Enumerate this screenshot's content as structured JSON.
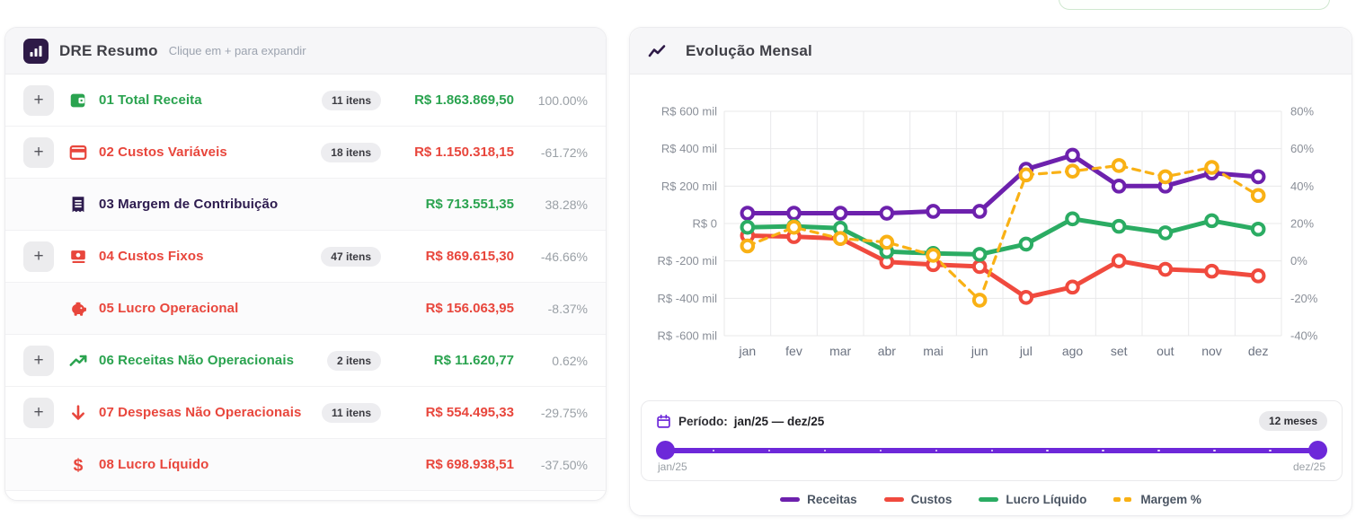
{
  "colors": {
    "green": "#2aa34f",
    "red": "#e8463c",
    "dark_purple": "#2d1b4e",
    "chart_purple": "#6d21ad",
    "chart_red": "#f04a3e",
    "chart_green": "#2bac63",
    "chart_orange": "#f9b115",
    "slider_purple": "#6d28d9",
    "muted": "#9aa0a6"
  },
  "dre": {
    "title": "DRE Resumo",
    "subtitle": "Clique em + para expandir",
    "rows": [
      {
        "expandable": true,
        "icon": "wallet-icon",
        "label": "01 Total Receita",
        "items": "11 itens",
        "value": "R$ 1.863.869,50",
        "pct": "100.00%",
        "label_color": "green",
        "value_color": "green",
        "subtotal": false
      },
      {
        "expandable": true,
        "icon": "card-icon",
        "label": "02 Custos Variáveis",
        "items": "18 itens",
        "value": "R$ 1.150.318,15",
        "pct": "-61.72%",
        "label_color": "red",
        "value_color": "red",
        "subtotal": false
      },
      {
        "expandable": false,
        "icon": "receipt-icon",
        "label": "03 Margem de Contribuição",
        "items": "",
        "value": "R$ 713.551,35",
        "pct": "38.28%",
        "label_color": "dark_purple",
        "value_color": "green",
        "subtotal": true
      },
      {
        "expandable": true,
        "icon": "banknotes-icon",
        "label": "04 Custos Fixos",
        "items": "47 itens",
        "value": "R$ 869.615,30",
        "pct": "-46.66%",
        "label_color": "red",
        "value_color": "red",
        "subtotal": false
      },
      {
        "expandable": false,
        "icon": "piggy-bank-icon",
        "label": "05 Lucro Operacional",
        "items": "",
        "value": "R$ 156.063,95",
        "pct": "-8.37%",
        "label_color": "red",
        "value_color": "red",
        "subtotal": true
      },
      {
        "expandable": true,
        "icon": "trending-up-icon",
        "label": "06 Receitas Não Operacionais",
        "items": "2 itens",
        "value": "R$ 11.620,77",
        "pct": "0.62%",
        "label_color": "green",
        "value_color": "green",
        "subtotal": false
      },
      {
        "expandable": true,
        "icon": "arrow-down-icon",
        "label": "07 Despesas Não Operacionais",
        "items": "11 itens",
        "value": "R$ 554.495,33",
        "pct": "-29.75%",
        "label_color": "red",
        "value_color": "red",
        "subtotal": false
      },
      {
        "expandable": false,
        "icon": "dollar-icon",
        "label": "08 Lucro Líquido",
        "items": "",
        "value": "R$ 698.938,51",
        "pct": "-37.50%",
        "label_color": "red",
        "value_color": "red",
        "subtotal": true
      }
    ]
  },
  "chart_panel": {
    "title": "Evolução Mensal",
    "period_label": "Período:",
    "period_value": "jan/25 — dez/25",
    "period_badge": "12 meses",
    "slider_min": "jan/25",
    "slider_max": "dez/25"
  },
  "chart_data": {
    "type": "line",
    "x": [
      "jan",
      "fev",
      "mar",
      "abr",
      "mai",
      "jun",
      "jul",
      "ago",
      "set",
      "out",
      "nov",
      "dez"
    ],
    "left_axis": {
      "title": "R$ mil",
      "ticks": [
        "R$ 600 mil",
        "R$ 400 mil",
        "R$ 200 mil",
        "R$ 0",
        "R$ -200 mil",
        "R$ -400 mil",
        "R$ -600 mil"
      ],
      "range": [
        -600,
        600
      ]
    },
    "right_axis": {
      "title": "%",
      "ticks": [
        "80%",
        "60%",
        "40%",
        "20%",
        "0%",
        "-20%",
        "-40%"
      ],
      "range": [
        -40,
        80
      ]
    },
    "grid": true,
    "legend_position": "bottom",
    "series": [
      {
        "name": "Receitas",
        "axis": "left",
        "color": "#6d21ad",
        "style": "solid",
        "unit": "R$ mil",
        "values": [
          55,
          55,
          55,
          55,
          65,
          65,
          290,
          365,
          200,
          200,
          270,
          250
        ]
      },
      {
        "name": "Custos",
        "axis": "left",
        "color": "#f04a3e",
        "style": "solid",
        "unit": "R$ mil",
        "values": [
          -65,
          -70,
          -80,
          -205,
          -220,
          -230,
          -395,
          -340,
          -200,
          -245,
          -255,
          -280
        ]
      },
      {
        "name": "Lucro Líquido",
        "axis": "left",
        "color": "#2bac63",
        "style": "solid",
        "unit": "R$ mil",
        "values": [
          -20,
          -15,
          -25,
          -150,
          -160,
          -165,
          -110,
          25,
          -15,
          -50,
          15,
          -30
        ]
      },
      {
        "name": "Margem %",
        "axis": "right",
        "color": "#f9b115",
        "style": "dashed",
        "unit": "%",
        "values": [
          8,
          18,
          12,
          10,
          3,
          -21,
          46,
          48,
          51,
          45,
          50,
          35
        ]
      }
    ]
  }
}
